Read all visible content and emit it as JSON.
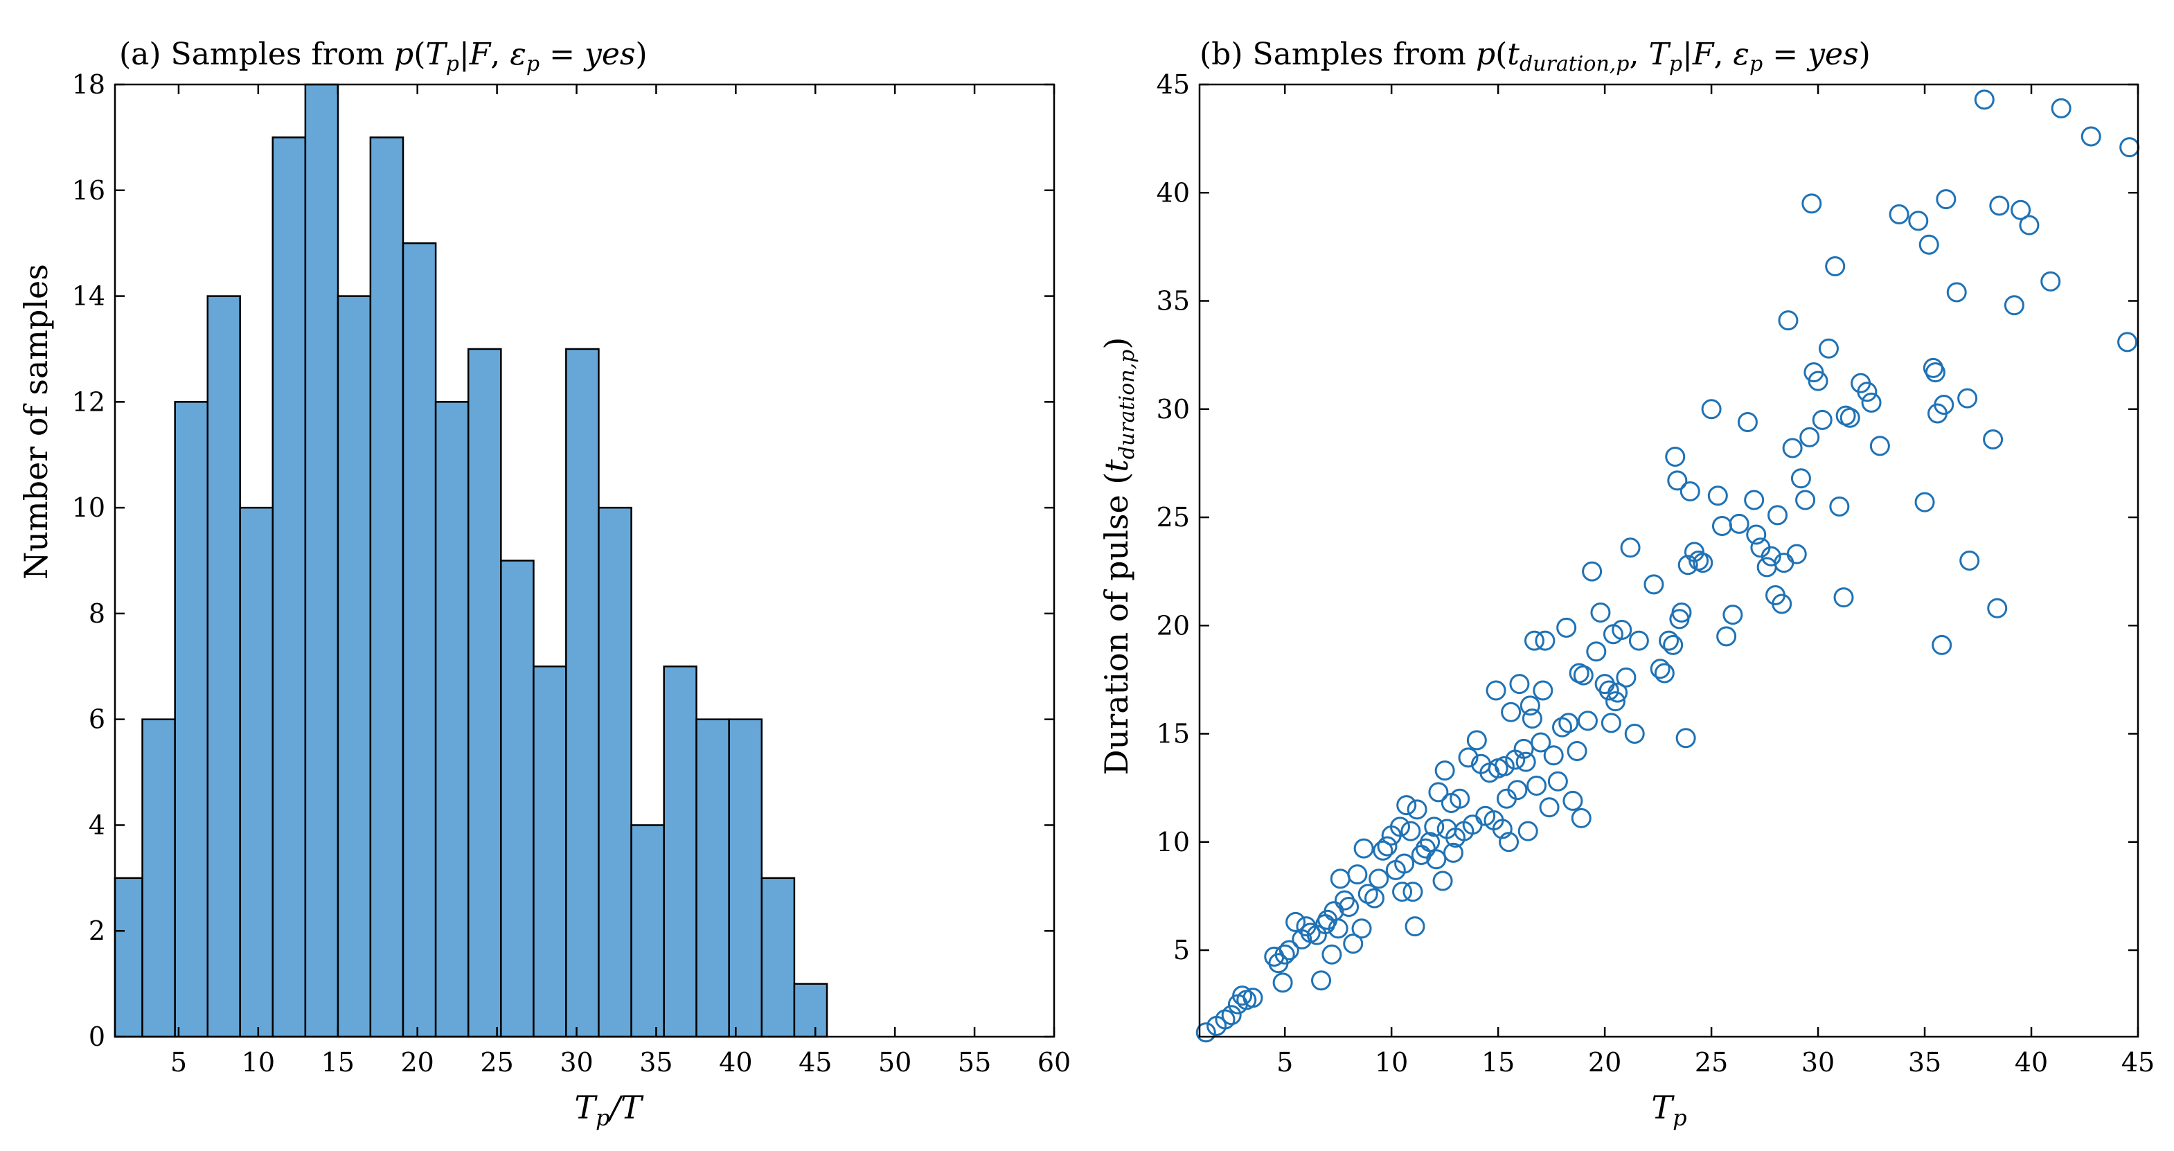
{
  "colors": {
    "bar_fill": "#66a7d8",
    "bar_edge": "#000000",
    "marker": "#1f72b5",
    "axis": "#000000"
  },
  "chart_data": [
    {
      "type": "bar",
      "title_prefix": "(a) Samples from ",
      "title_math": "p(T_p|F, ε_p = yes)",
      "xlabel": "T_p/T",
      "ylabel": "Number of samples",
      "xlim": [
        1,
        60
      ],
      "ylim": [
        0,
        18
      ],
      "xticks": [
        5,
        10,
        15,
        20,
        25,
        30,
        35,
        40,
        45,
        50,
        55,
        60
      ],
      "yticks": [
        0,
        2,
        4,
        6,
        8,
        10,
        12,
        14,
        16,
        18
      ],
      "bin_edges": [
        1,
        2.72,
        6.82,
        10.91,
        15.01,
        19.1,
        23.2,
        27.3,
        31.39,
        35.49,
        39.58,
        43.68,
        47.77,
        51.87,
        55.97,
        60
      ],
      "bins": [
        {
          "start": -1.32,
          "end": 2.72,
          "value": 3
        },
        {
          "start": 2.72,
          "end": 4.77,
          "value": 6
        },
        {
          "start": 4.77,
          "end": 6.82,
          "value": 12
        },
        {
          "start": 6.82,
          "end": 8.86,
          "value": 14
        },
        {
          "start": 8.86,
          "end": 10.91,
          "value": 10
        },
        {
          "start": 10.91,
          "end": 12.96,
          "value": 17
        },
        {
          "start": 12.96,
          "end": 15.01,
          "value": 18
        },
        {
          "start": 15.01,
          "end": 17.05,
          "value": 14
        },
        {
          "start": 17.05,
          "end": 19.1,
          "value": 17
        },
        {
          "start": 19.1,
          "end": 21.15,
          "value": 15
        },
        {
          "start": 21.15,
          "end": 23.2,
          "value": 12
        },
        {
          "start": 23.2,
          "end": 25.25,
          "value": 13
        },
        {
          "start": 25.25,
          "end": 27.3,
          "value": 9
        },
        {
          "start": 27.3,
          "end": 29.34,
          "value": 7
        },
        {
          "start": 29.34,
          "end": 31.39,
          "value": 13
        },
        {
          "start": 31.39,
          "end": 33.44,
          "value": 10
        },
        {
          "start": 33.44,
          "end": 35.49,
          "value": 4
        },
        {
          "start": 35.49,
          "end": 37.53,
          "value": 7
        },
        {
          "start": 37.53,
          "end": 39.58,
          "value": 6
        },
        {
          "start": 39.58,
          "end": 41.63,
          "value": 6
        },
        {
          "start": 41.63,
          "end": 43.68,
          "value": 3
        },
        {
          "start": 43.68,
          "end": 45.73,
          "value": 1
        }
      ]
    },
    {
      "type": "scatter",
      "title_prefix": "(b) Samples from ",
      "title_math": "p(t_duration,p, T_p|F, ε_p = yes)",
      "xlabel": "T_p",
      "ylabel": "Duration of pulse (t_duration,p)",
      "xlim": [
        1,
        45
      ],
      "ylim": [
        1,
        45
      ],
      "xticks": [
        5,
        10,
        15,
        20,
        25,
        30,
        35,
        40,
        45
      ],
      "yticks": [
        5,
        10,
        15,
        20,
        25,
        30,
        35,
        40,
        45
      ],
      "points": [
        [
          1.3,
          1.2
        ],
        [
          1.8,
          1.5
        ],
        [
          2.2,
          1.8
        ],
        [
          2.5,
          2.0
        ],
        [
          2.8,
          2.5
        ],
        [
          3.0,
          2.9
        ],
        [
          3.2,
          2.7
        ],
        [
          3.5,
          2.8
        ],
        [
          4.5,
          4.7
        ],
        [
          4.7,
          4.4
        ],
        [
          4.9,
          3.5
        ],
        [
          5.0,
          4.8
        ],
        [
          5.2,
          5.0
        ],
        [
          5.5,
          6.3
        ],
        [
          5.8,
          5.5
        ],
        [
          6.0,
          6.1
        ],
        [
          6.2,
          5.8
        ],
        [
          6.5,
          5.7
        ],
        [
          6.7,
          3.6
        ],
        [
          6.9,
          6.2
        ],
        [
          7.0,
          6.4
        ],
        [
          7.2,
          4.8
        ],
        [
          7.3,
          6.8
        ],
        [
          7.5,
          6.0
        ],
        [
          7.6,
          8.3
        ],
        [
          7.8,
          7.3
        ],
        [
          8.0,
          7.0
        ],
        [
          8.2,
          5.3
        ],
        [
          8.4,
          8.5
        ],
        [
          8.6,
          6.0
        ],
        [
          8.7,
          9.7
        ],
        [
          8.9,
          7.6
        ],
        [
          9.2,
          7.4
        ],
        [
          9.4,
          8.3
        ],
        [
          9.6,
          9.6
        ],
        [
          9.8,
          9.8
        ],
        [
          10.0,
          10.3
        ],
        [
          10.2,
          8.7
        ],
        [
          10.4,
          10.7
        ],
        [
          10.5,
          7.7
        ],
        [
          10.6,
          9.0
        ],
        [
          10.7,
          11.7
        ],
        [
          10.9,
          10.5
        ],
        [
          11.0,
          7.7
        ],
        [
          11.1,
          6.1
        ],
        [
          11.2,
          11.5
        ],
        [
          11.4,
          9.4
        ],
        [
          11.6,
          9.7
        ],
        [
          11.8,
          10.0
        ],
        [
          12.0,
          10.7
        ],
        [
          12.1,
          9.2
        ],
        [
          12.2,
          12.3
        ],
        [
          12.4,
          8.2
        ],
        [
          12.5,
          13.3
        ],
        [
          12.6,
          10.6
        ],
        [
          12.8,
          11.8
        ],
        [
          12.9,
          9.5
        ],
        [
          13.0,
          10.2
        ],
        [
          13.2,
          12.0
        ],
        [
          13.4,
          10.5
        ],
        [
          13.6,
          13.9
        ],
        [
          13.8,
          10.8
        ],
        [
          14.0,
          14.7
        ],
        [
          14.2,
          13.6
        ],
        [
          14.4,
          11.2
        ],
        [
          14.6,
          13.2
        ],
        [
          14.8,
          11.0
        ],
        [
          14.9,
          17.0
        ],
        [
          15.0,
          13.4
        ],
        [
          15.2,
          10.6
        ],
        [
          15.3,
          13.5
        ],
        [
          15.4,
          12.0
        ],
        [
          15.5,
          10.0
        ],
        [
          15.6,
          16.0
        ],
        [
          15.8,
          13.8
        ],
        [
          15.9,
          12.4
        ],
        [
          16.0,
          17.3
        ],
        [
          16.2,
          14.3
        ],
        [
          16.3,
          13.7
        ],
        [
          16.4,
          10.5
        ],
        [
          16.5,
          16.3
        ],
        [
          16.6,
          15.7
        ],
        [
          16.7,
          19.3
        ],
        [
          16.8,
          12.6
        ],
        [
          17.0,
          14.6
        ],
        [
          17.1,
          17.0
        ],
        [
          17.2,
          19.3
        ],
        [
          17.4,
          11.6
        ],
        [
          17.6,
          14.0
        ],
        [
          17.8,
          12.8
        ],
        [
          18.0,
          15.3
        ],
        [
          18.2,
          19.9
        ],
        [
          18.3,
          15.5
        ],
        [
          18.5,
          11.9
        ],
        [
          18.7,
          14.2
        ],
        [
          18.8,
          17.8
        ],
        [
          18.9,
          11.1
        ],
        [
          19.0,
          17.7
        ],
        [
          19.2,
          15.6
        ],
        [
          19.4,
          22.5
        ],
        [
          19.6,
          18.8
        ],
        [
          19.8,
          20.6
        ],
        [
          20.0,
          17.3
        ],
        [
          20.2,
          17.0
        ],
        [
          20.3,
          15.5
        ],
        [
          20.4,
          19.6
        ],
        [
          20.5,
          16.5
        ],
        [
          20.6,
          16.9
        ],
        [
          20.8,
          19.8
        ],
        [
          21.0,
          17.6
        ],
        [
          21.2,
          23.6
        ],
        [
          21.4,
          15.0
        ],
        [
          21.6,
          19.3
        ],
        [
          22.3,
          21.9
        ],
        [
          22.6,
          18.0
        ],
        [
          22.8,
          17.8
        ],
        [
          23.0,
          19.3
        ],
        [
          23.2,
          19.1
        ],
        [
          23.3,
          27.8
        ],
        [
          23.4,
          26.7
        ],
        [
          23.5,
          20.3
        ],
        [
          23.6,
          20.6
        ],
        [
          23.8,
          14.8
        ],
        [
          23.9,
          22.8
        ],
        [
          24.0,
          26.2
        ],
        [
          24.2,
          23.4
        ],
        [
          24.4,
          23.0
        ],
        [
          24.6,
          22.9
        ],
        [
          25.0,
          30.0
        ],
        [
          25.3,
          26.0
        ],
        [
          25.5,
          24.6
        ],
        [
          25.7,
          19.5
        ],
        [
          26.0,
          20.5
        ],
        [
          26.3,
          24.7
        ],
        [
          26.7,
          29.4
        ],
        [
          27.0,
          25.8
        ],
        [
          27.1,
          24.2
        ],
        [
          27.3,
          23.6
        ],
        [
          27.6,
          22.7
        ],
        [
          27.8,
          23.2
        ],
        [
          28.0,
          21.4
        ],
        [
          28.1,
          25.1
        ],
        [
          28.3,
          21.0
        ],
        [
          28.4,
          22.9
        ],
        [
          28.6,
          34.1
        ],
        [
          28.8,
          28.2
        ],
        [
          29.0,
          23.3
        ],
        [
          29.2,
          26.8
        ],
        [
          29.4,
          25.8
        ],
        [
          29.6,
          28.7
        ],
        [
          29.7,
          39.5
        ],
        [
          29.8,
          31.7
        ],
        [
          30.0,
          31.3
        ],
        [
          30.2,
          29.5
        ],
        [
          30.5,
          32.8
        ],
        [
          30.8,
          36.6
        ],
        [
          31.0,
          25.5
        ],
        [
          31.2,
          21.3
        ],
        [
          31.3,
          29.7
        ],
        [
          31.5,
          29.6
        ],
        [
          32.0,
          31.2
        ],
        [
          32.3,
          30.8
        ],
        [
          32.5,
          30.3
        ],
        [
          32.9,
          28.3
        ],
        [
          33.8,
          39.0
        ],
        [
          34.7,
          38.7
        ],
        [
          35.0,
          25.7
        ],
        [
          35.2,
          37.6
        ],
        [
          35.4,
          31.9
        ],
        [
          35.5,
          31.7
        ],
        [
          35.6,
          29.8
        ],
        [
          35.8,
          19.1
        ],
        [
          35.9,
          30.2
        ],
        [
          36.0,
          39.7
        ],
        [
          36.5,
          35.4
        ],
        [
          37.0,
          30.5
        ],
        [
          37.1,
          23.0
        ],
        [
          37.8,
          44.3
        ],
        [
          38.2,
          28.6
        ],
        [
          38.4,
          20.8
        ],
        [
          38.5,
          39.4
        ],
        [
          39.2,
          34.8
        ],
        [
          39.5,
          39.2
        ],
        [
          39.9,
          38.5
        ],
        [
          40.9,
          35.9
        ],
        [
          41.4,
          43.9
        ],
        [
          42.8,
          42.6
        ],
        [
          44.5,
          33.1
        ],
        [
          44.6,
          42.1
        ]
      ]
    }
  ]
}
